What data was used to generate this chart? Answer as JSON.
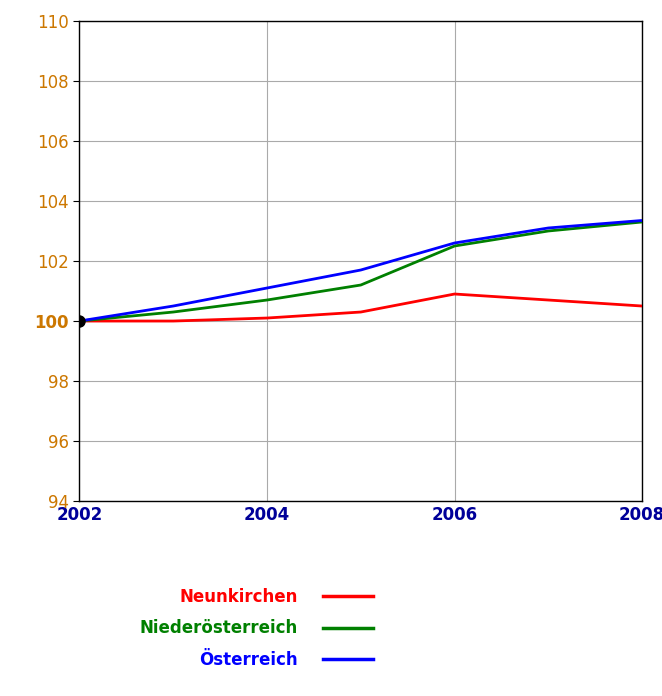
{
  "years": [
    2002,
    2003,
    2004,
    2005,
    2006,
    2007,
    2008
  ],
  "neunkirchen": [
    100.0,
    100.0,
    100.1,
    100.3,
    100.9,
    100.7,
    100.5
  ],
  "niederoesterreich": [
    100.0,
    100.3,
    100.7,
    101.2,
    102.5,
    103.0,
    103.3
  ],
  "oesterreich": [
    100.0,
    100.5,
    101.1,
    101.7,
    102.6,
    103.1,
    103.35
  ],
  "neunkirchen_color": "#ff0000",
  "niederoesterreich_color": "#008000",
  "oesterreich_color": "#0000ff",
  "marker_color": "#000000",
  "ylim": [
    94,
    110
  ],
  "yticks": [
    94,
    96,
    98,
    100,
    102,
    104,
    106,
    108,
    110
  ],
  "xticks": [
    2002,
    2004,
    2006,
    2008
  ],
  "legend_labels": [
    "Neunkirchen",
    "Niederösterreich",
    "Österreich"
  ],
  "legend_colors": [
    "#ff0000",
    "#008000",
    "#0000ff"
  ],
  "background_color": "#ffffff",
  "grid_color": "#aaaaaa",
  "ytick_color": "#cc7700",
  "xtick_color": "#000099",
  "label_fontsize": 12,
  "legend_fontsize": 12,
  "bold_ytick": 100
}
